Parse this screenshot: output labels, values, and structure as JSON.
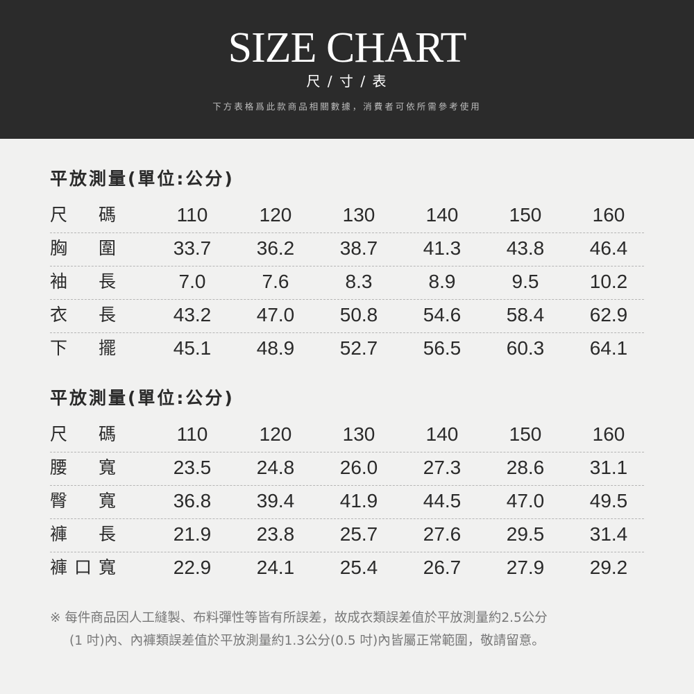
{
  "header": {
    "title": "SIZE CHART",
    "subtitle": "尺 / 寸 / 表",
    "description": "下方表格爲此款商品相關數據，消費者可依所需參考使用"
  },
  "tables": [
    {
      "title": "平放測量(單位:公分)",
      "rows": [
        {
          "label": [
            "尺",
            "碼"
          ],
          "values": [
            "110",
            "120",
            "130",
            "140",
            "150",
            "160"
          ]
        },
        {
          "label": [
            "胸",
            "圍"
          ],
          "values": [
            "33.7",
            "36.2",
            "38.7",
            "41.3",
            "43.8",
            "46.4"
          ]
        },
        {
          "label": [
            "袖",
            "長"
          ],
          "values": [
            "7.0",
            "7.6",
            "8.3",
            "8.9",
            "9.5",
            "10.2"
          ]
        },
        {
          "label": [
            "衣",
            "長"
          ],
          "values": [
            "43.2",
            "47.0",
            "50.8",
            "54.6",
            "58.4",
            "62.9"
          ]
        },
        {
          "label": [
            "下",
            "擺"
          ],
          "values": [
            "45.1",
            "48.9",
            "52.7",
            "56.5",
            "60.3",
            "64.1"
          ]
        }
      ]
    },
    {
      "title": "平放測量(單位:公分)",
      "rows": [
        {
          "label": [
            "尺",
            "碼"
          ],
          "values": [
            "110",
            "120",
            "130",
            "140",
            "150",
            "160"
          ]
        },
        {
          "label": [
            "腰",
            "寬"
          ],
          "values": [
            "23.5",
            "24.8",
            "26.0",
            "27.3",
            "28.6",
            "31.1"
          ]
        },
        {
          "label": [
            "臀",
            "寬"
          ],
          "values": [
            "36.8",
            "39.4",
            "41.9",
            "44.5",
            "47.0",
            "49.5"
          ]
        },
        {
          "label": [
            "褲",
            "長"
          ],
          "values": [
            "21.9",
            "23.8",
            "25.7",
            "27.6",
            "29.5",
            "31.4"
          ]
        },
        {
          "label": [
            "褲",
            "口",
            "寬"
          ],
          "values": [
            "22.9",
            "24.1",
            "25.4",
            "26.7",
            "27.9",
            "29.2"
          ]
        }
      ]
    }
  ],
  "note": {
    "line1": "※ 每件商品因人工縫製、布料彈性等皆有所誤差，故成衣類誤差值於平放測量約2.5公分",
    "line2": "(1 吋)內、內褲類誤差值於平放測量約1.3公分(0.5 吋)內皆屬正常範圍，敬請留意。"
  }
}
